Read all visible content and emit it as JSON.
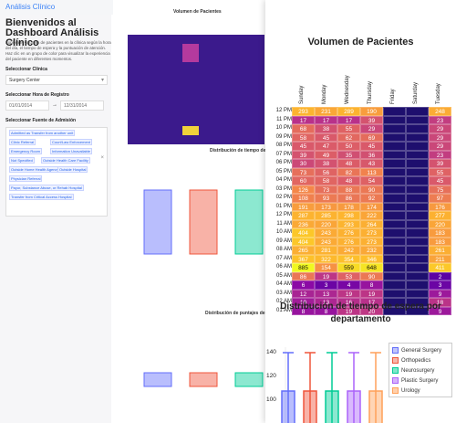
{
  "app": {
    "brand": "Análisis Clínico"
  },
  "sidebar": {
    "title": "Bienvenidos al Dashboard Análisis Clínico",
    "description": "Explora el volumen de pacientes en la clínica según la hora del día, el tiempo de espera y la puntuación de atención. Haz clic en un grupo de color para visualizar la experiencia del paciente en diferentes momentos.",
    "clinic_label": "Seleccionar Clínica",
    "clinic_value": "Surgery Center",
    "hour_label": "Seleccionar Hora de Registro",
    "date_start": "01/01/2014",
    "date_arrow": "→",
    "date_end": "12/31/2014",
    "admission_label": "Seleccionar Fuente de Admisión",
    "admission_tags": [
      "Admitted as Transfer from another unit",
      "Clinic Referral",
      "Court/Law Enforcement",
      "Emergency Room",
      "Information Unavailable",
      "Not Specified",
      "Outside Health Care Facility",
      "Outside Home Health Agency",
      "Outside Hospital",
      "Physician Referral",
      "Payor, Substance Abuse, or Rehab Hospital",
      "Transfer from Critical Access Hospital"
    ]
  },
  "background_figure": {
    "title1": "Volumen de Pacientes",
    "title2": "Distribución de tiempo de espera",
    "title3": "Distribución de puntajes de atención"
  },
  "front_figure": {
    "heatmap_title": "Volumen de Pacientes",
    "box_title_line1": "Distribución de tiempo de espera por",
    "box_title_line2": "departamento",
    "days": [
      "Sunday",
      "Monday",
      "Wednesday",
      "Thursday",
      "Friday",
      "Saturday",
      "Tuesday"
    ],
    "hours": [
      "12 PM",
      "11 PM",
      "10 PM",
      "09 PM",
      "08 PM",
      "07 PM",
      "06 PM",
      "05 PM",
      "04 PM",
      "03 PM",
      "02 PM",
      "01 PM",
      "12 PM",
      "11 AM",
      "10 AM",
      "09 AM",
      "08 AM",
      "07 AM",
      "06 AM",
      "05 AM",
      "04 AM",
      "03 AM",
      "02 AM",
      "01 AM"
    ],
    "y_ticks": [
      "140",
      "120",
      "100"
    ],
    "legend": [
      "General Surgery",
      "Orthopedics",
      "Neurosurgery",
      "Plastic Surgery",
      "Urology"
    ]
  },
  "colors": {
    "brand": "#3b82f6",
    "general": "#636efa",
    "ortho": "#ef553b",
    "neuro": "#00cc96",
    "plastic": "#ab63fa",
    "urology": "#ffa15a"
  },
  "chart_data": [
    {
      "type": "heatmap",
      "title": "Volumen de Pacientes",
      "x": [
        "Sunday",
        "Monday",
        "Wednesday",
        "Thursday",
        "Friday",
        "Saturday",
        "Tuesday"
      ],
      "y": [
        "12 PM",
        "11 PM",
        "10 PM",
        "09 PM",
        "08 PM",
        "07 PM",
        "06 PM",
        "05 PM",
        "04 PM",
        "03 PM",
        "02 PM",
        "01 PM",
        "12 PM",
        "11 AM",
        "10 AM",
        "09 AM",
        "08 AM",
        "07 AM",
        "06 AM",
        "05 AM",
        "04 AM",
        "03 AM",
        "02 AM",
        "01 AM"
      ],
      "z": [
        [
          293,
          231,
          289,
          190,
          "",
          "",
          248
        ],
        [
          17,
          17,
          17,
          39,
          "",
          "",
          23
        ],
        [
          68,
          38,
          55,
          29,
          "",
          "",
          29
        ],
        [
          58,
          45,
          62,
          69,
          "",
          "",
          29
        ],
        [
          45,
          47,
          50,
          45,
          "",
          "",
          29
        ],
        [
          39,
          49,
          35,
          36,
          "",
          "",
          23
        ],
        [
          30,
          38,
          48,
          43,
          "",
          "",
          39
        ],
        [
          73,
          56,
          82,
          113,
          "",
          "",
          55
        ],
        [
          60,
          58,
          48,
          54,
          "",
          "",
          45
        ],
        [
          126,
          73,
          88,
          90,
          "",
          "",
          75
        ],
        [
          108,
          93,
          86,
          92,
          "",
          "",
          97
        ],
        [
          191,
          173,
          178,
          174,
          "",
          "",
          176
        ],
        [
          287,
          285,
          298,
          222,
          "",
          "",
          277
        ],
        [
          236,
          220,
          293,
          264,
          "",
          "",
          220
        ],
        [
          404,
          243,
          276,
          273,
          "",
          "",
          183
        ],
        [
          404,
          243,
          276,
          273,
          "",
          "",
          183
        ],
        [
          265,
          281,
          242,
          232,
          "",
          "",
          261
        ],
        [
          367,
          322,
          354,
          346,
          "",
          "",
          211
        ],
        [
          885,
          154,
          559,
          648,
          "",
          "",
          411
        ],
        [
          86,
          19,
          53,
          90,
          "",
          "",
          2
        ],
        [
          6,
          3,
          4,
          8,
          "",
          "",
          3
        ],
        [
          12,
          13,
          19,
          19,
          "",
          "",
          9
        ],
        [
          10,
          13,
          16,
          17,
          "",
          "",
          18
        ],
        [
          8,
          8,
          19,
          20,
          "",
          "",
          9
        ]
      ]
    },
    {
      "type": "box",
      "title": "Distribución de tiempo de espera por departamento",
      "categories": [
        "General Surgery",
        "Orthopedics",
        "Neurosurgery",
        "Plastic Surgery",
        "Urology"
      ],
      "ylim": [
        95,
        145
      ]
    }
  ]
}
